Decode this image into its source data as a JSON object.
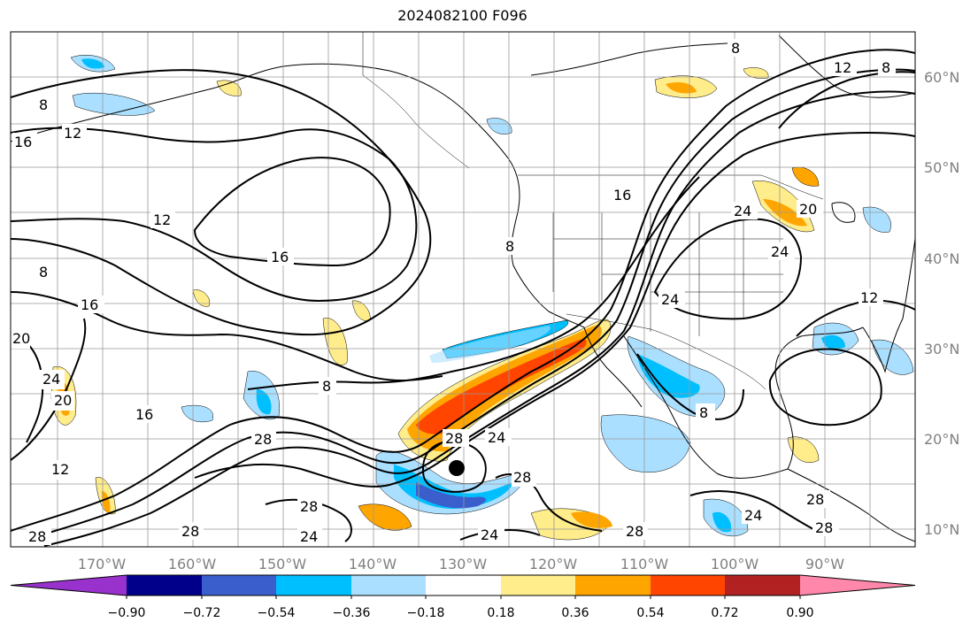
{
  "title": "2024082100 F096",
  "lat_labels": [
    "60°N",
    "50°N",
    "40°N",
    "30°N",
    "20°N",
    "10°N"
  ],
  "lon_labels": [
    "170°W",
    "160°W",
    "150°W",
    "140°W",
    "130°W",
    "120°W",
    "110°W",
    "100°W",
    "90°W"
  ],
  "colorbar": {
    "ticks": [
      "−0.90",
      "−0.72",
      "−0.54",
      "−0.36",
      "−0.18",
      "0.18",
      "0.36",
      "0.54",
      "0.72",
      "0.90"
    ],
    "colors": [
      "#9932cc",
      "#00008b",
      "#3a5fcd",
      "#00bfff",
      "#aadfff",
      "#ffffff",
      "#ffec8b",
      "#ffa500",
      "#ff4500",
      "#b22222",
      "#ff88aa"
    ]
  },
  "contour_labels": [
    "8",
    "12",
    "16",
    "20",
    "24",
    "28"
  ],
  "storm_marker": "tropical-cyclone-center"
}
